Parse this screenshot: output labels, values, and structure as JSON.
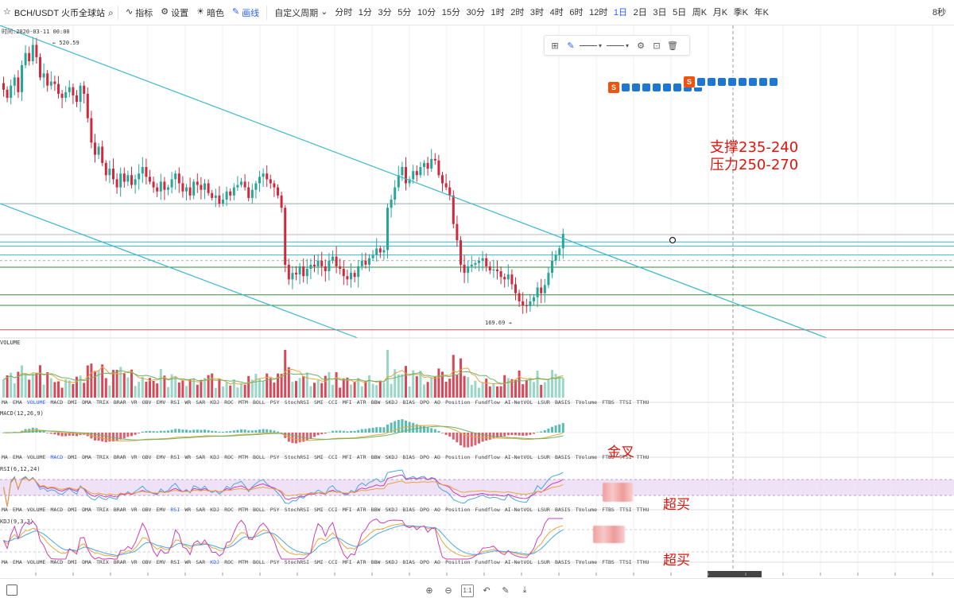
{
  "toolbar": {
    "symbol": "BCH/USDT 火币全球站",
    "indicators_label": "指标",
    "settings_label": "设置",
    "dark_label": "暗色",
    "line_label": "画线",
    "custom_period_label": "自定义周期",
    "intervals": [
      "分时",
      "1分",
      "3分",
      "5分",
      "10分",
      "15分",
      "30分",
      "1时",
      "2时",
      "3时",
      "4时",
      "6时",
      "12时",
      "1日",
      "2日",
      "3日",
      "5日",
      "周K",
      "月K",
      "季K",
      "年K"
    ],
    "active_interval": "1日",
    "countdown": "8秒"
  },
  "main_chart": {
    "time_label": "时间:2020-03-11 00:00",
    "high_label": "520.59",
    "low_label": "169.69"
  },
  "pane_labels": {
    "volume": "VOLUME",
    "macd": "MACD(12,26,9)",
    "rsi": "RSI(6,12,24)",
    "kdj": "KDJ(9,3,3)"
  },
  "indicator_tabs": [
    "MA",
    "EMA",
    "VOLUME",
    "MACD",
    "DMI",
    "DMA",
    "TRIX",
    "BRAR",
    "VR",
    "OBV",
    "EMV",
    "RSI",
    "WR",
    "SAR",
    "KDJ",
    "ROC",
    "MTM",
    "BOLL",
    "PSY",
    "StochRSI",
    "SMI",
    "CCI",
    "MFI",
    "ATR",
    "BBW",
    "SKDJ",
    "BIAS",
    "DPO",
    "AO",
    "Position",
    "Fundflow",
    "AI-NetVOL",
    "LSUR",
    "BASIS",
    "TVolume",
    "FTBS",
    "TTSI",
    "TTHU"
  ],
  "indicator_tab_rows": [
    {
      "active": "VOLUME"
    },
    {
      "active": "MACD"
    },
    {
      "active": "RSI"
    },
    {
      "active": "KDJ"
    }
  ],
  "annotations": {
    "support": "支撑235-240",
    "pressure": "压力250-270",
    "golden_cross": "金叉",
    "overbought_1": "超买",
    "overbought_2": "超买"
  },
  "colors": {
    "up": "#26a69a",
    "down": "#d1283c",
    "trendline": "#38b8cc",
    "accent": "#2962ff",
    "annotation": "#e0140c"
  },
  "chart_data": {
    "type": "candlestick",
    "symbol": "BCH/USDT",
    "interval": "1日",
    "y_range_main": [
      160,
      540
    ],
    "high_marker": 520.59,
    "low_marker": 169.69,
    "close_series": [
      465,
      455,
      470,
      480,
      462,
      495,
      510,
      500,
      520,
      505,
      480,
      485,
      470,
      475,
      472,
      460,
      455,
      462,
      468,
      458,
      450,
      470,
      460,
      430,
      400,
      385,
      395,
      375,
      360,
      368,
      355,
      345,
      362,
      352,
      360,
      348,
      355,
      362,
      370,
      358,
      352,
      345,
      340,
      352,
      342,
      345,
      355,
      362,
      350,
      340,
      345,
      335,
      352,
      348,
      342,
      350,
      338,
      332,
      335,
      325,
      330,
      340,
      335,
      345,
      348,
      352,
      345,
      332,
      342,
      350,
      358,
      362,
      355,
      350,
      345,
      335,
      320,
      250,
      232,
      240,
      238,
      248,
      236,
      245,
      250,
      248,
      255,
      248,
      242,
      255,
      260,
      248,
      245,
      236,
      232,
      240,
      235,
      248,
      255,
      250,
      258,
      262,
      270,
      265,
      268,
      320,
      330,
      345,
      360,
      370,
      350,
      355,
      365,
      360,
      370,
      375,
      368,
      380,
      378,
      360,
      350,
      345,
      335,
      300,
      280,
      250,
      240,
      248,
      250,
      252,
      255,
      258,
      248,
      243,
      244,
      242,
      235,
      232,
      238,
      226,
      215,
      205,
      200,
      199,
      205,
      210,
      222,
      215,
      225,
      240,
      255,
      262,
      270,
      288
    ],
    "support": [
      235,
      240
    ],
    "resistance": [
      250,
      270
    ],
    "horizontal_levels": [
      325,
      287,
      278,
      273,
      262,
      255,
      247,
      213,
      200,
      170
    ],
    "indicators": {
      "volume": {
        "label": "VOLUME"
      },
      "macd": {
        "params": [
          12,
          26,
          9
        ]
      },
      "rsi": {
        "params": [
          6,
          12,
          24
        ]
      },
      "kdj": {
        "params": [
          9,
          3,
          3
        ]
      }
    }
  }
}
